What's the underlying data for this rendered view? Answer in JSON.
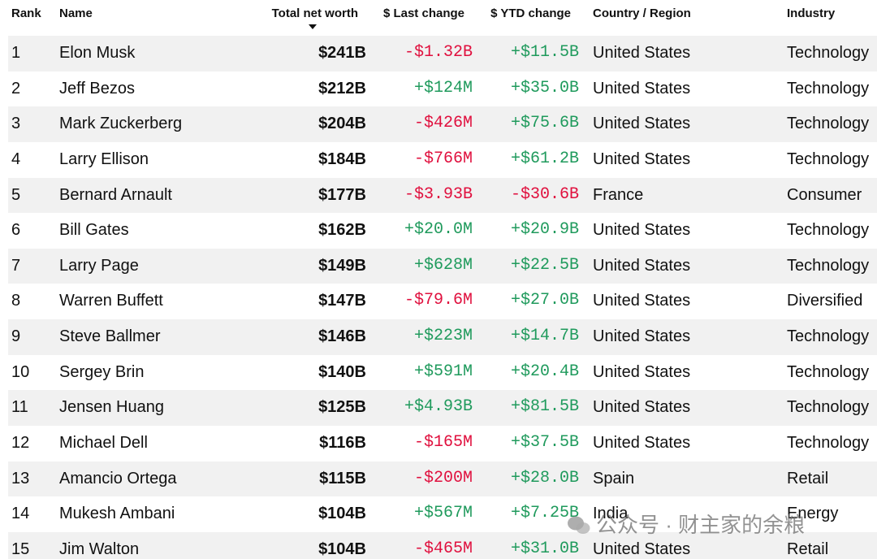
{
  "header": {
    "columns": [
      "Rank",
      "Name",
      "Total net worth",
      "$ Last change",
      "$ YTD change",
      "Country / Region",
      "Industry"
    ]
  },
  "table": {
    "rows": [
      [
        "1",
        "Elon Musk",
        "$241B",
        "-$1.32B",
        "+$11.5B",
        "United States",
        "Technology"
      ],
      [
        "2",
        "Jeff Bezos",
        "$212B",
        "+$124M",
        "+$35.0B",
        "United States",
        "Technology"
      ],
      [
        "3",
        "Mark Zuckerberg",
        "$204B",
        "-$426M",
        "+$75.6B",
        "United States",
        "Technology"
      ],
      [
        "4",
        "Larry Ellison",
        "$184B",
        "-$766M",
        "+$61.2B",
        "United States",
        "Technology"
      ],
      [
        "5",
        "Bernard Arnault",
        "$177B",
        "-$3.93B",
        "-$30.6B",
        "France",
        "Consumer"
      ],
      [
        "6",
        "Bill Gates",
        "$162B",
        "+$20.0M",
        "+$20.9B",
        "United States",
        "Technology"
      ],
      [
        "7",
        "Larry Page",
        "$149B",
        "+$628M",
        "+$22.5B",
        "United States",
        "Technology"
      ],
      [
        "8",
        "Warren Buffett",
        "$147B",
        "-$79.6M",
        "+$27.0B",
        "United States",
        "Diversified"
      ],
      [
        "9",
        "Steve Ballmer",
        "$146B",
        "+$223M",
        "+$14.7B",
        "United States",
        "Technology"
      ],
      [
        "10",
        "Sergey Brin",
        "$140B",
        "+$591M",
        "+$20.4B",
        "United States",
        "Technology"
      ],
      [
        "11",
        "Jensen Huang",
        "$125B",
        "+$4.93B",
        "+$81.5B",
        "United States",
        "Technology"
      ],
      [
        "12",
        "Michael Dell",
        "$116B",
        "-$165M",
        "+$37.5B",
        "United States",
        "Technology"
      ],
      [
        "13",
        "Amancio Ortega",
        "$115B",
        "-$200M",
        "+$28.0B",
        "Spain",
        "Retail"
      ],
      [
        "14",
        "Mukesh Ambani",
        "$104B",
        "+$567M",
        "+$7.25B",
        "India",
        "Energy"
      ],
      [
        "15",
        "Jim Walton",
        "$104B",
        "-$465M",
        "+$31.0B",
        "United States",
        "Retail"
      ]
    ]
  },
  "watermark": "公众号 · 财主家的余粮"
}
